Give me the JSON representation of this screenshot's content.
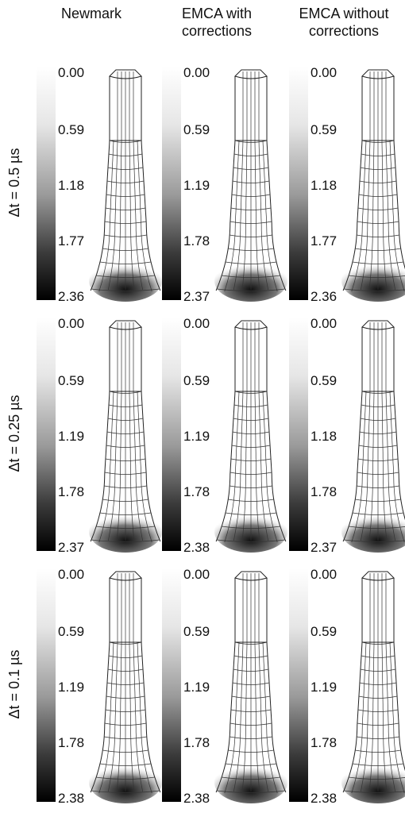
{
  "columns": [
    {
      "lines": [
        "Newmark"
      ]
    },
    {
      "lines": [
        "EMCA with",
        "corrections"
      ]
    },
    {
      "lines": [
        "EMCA without",
        "corrections"
      ]
    }
  ],
  "rows": [
    {
      "label": "Δt = 0.5 µs",
      "panels": [
        {
          "ticks": [
            "0.00",
            "0.59",
            "1.18",
            "1.77",
            "2.36"
          ]
        },
        {
          "ticks": [
            "0.00",
            "0.59",
            "1.19",
            "1.78",
            "2.37"
          ]
        },
        {
          "ticks": [
            "0.00",
            "0.59",
            "1.18",
            "1.77",
            "2.36"
          ]
        }
      ]
    },
    {
      "label": "Δt = 0.25 µs",
      "panels": [
        {
          "ticks": [
            "0.00",
            "0.59",
            "1.19",
            "1.78",
            "2.37"
          ]
        },
        {
          "ticks": [
            "0.00",
            "0.59",
            "1.19",
            "1.78",
            "2.38"
          ]
        },
        {
          "ticks": [
            "0.00",
            "0.59",
            "1.18",
            "1.78",
            "2.37"
          ]
        }
      ]
    },
    {
      "label": "Δt = 0.1 µs",
      "panels": [
        {
          "ticks": [
            "0.00",
            "0.59",
            "1.19",
            "1.78",
            "2.38"
          ]
        },
        {
          "ticks": [
            "0.00",
            "0.59",
            "1.19",
            "1.78",
            "2.38"
          ]
        },
        {
          "ticks": [
            "0.00",
            "0.59",
            "1.19",
            "1.78",
            "2.38"
          ]
        }
      ]
    }
  ]
}
